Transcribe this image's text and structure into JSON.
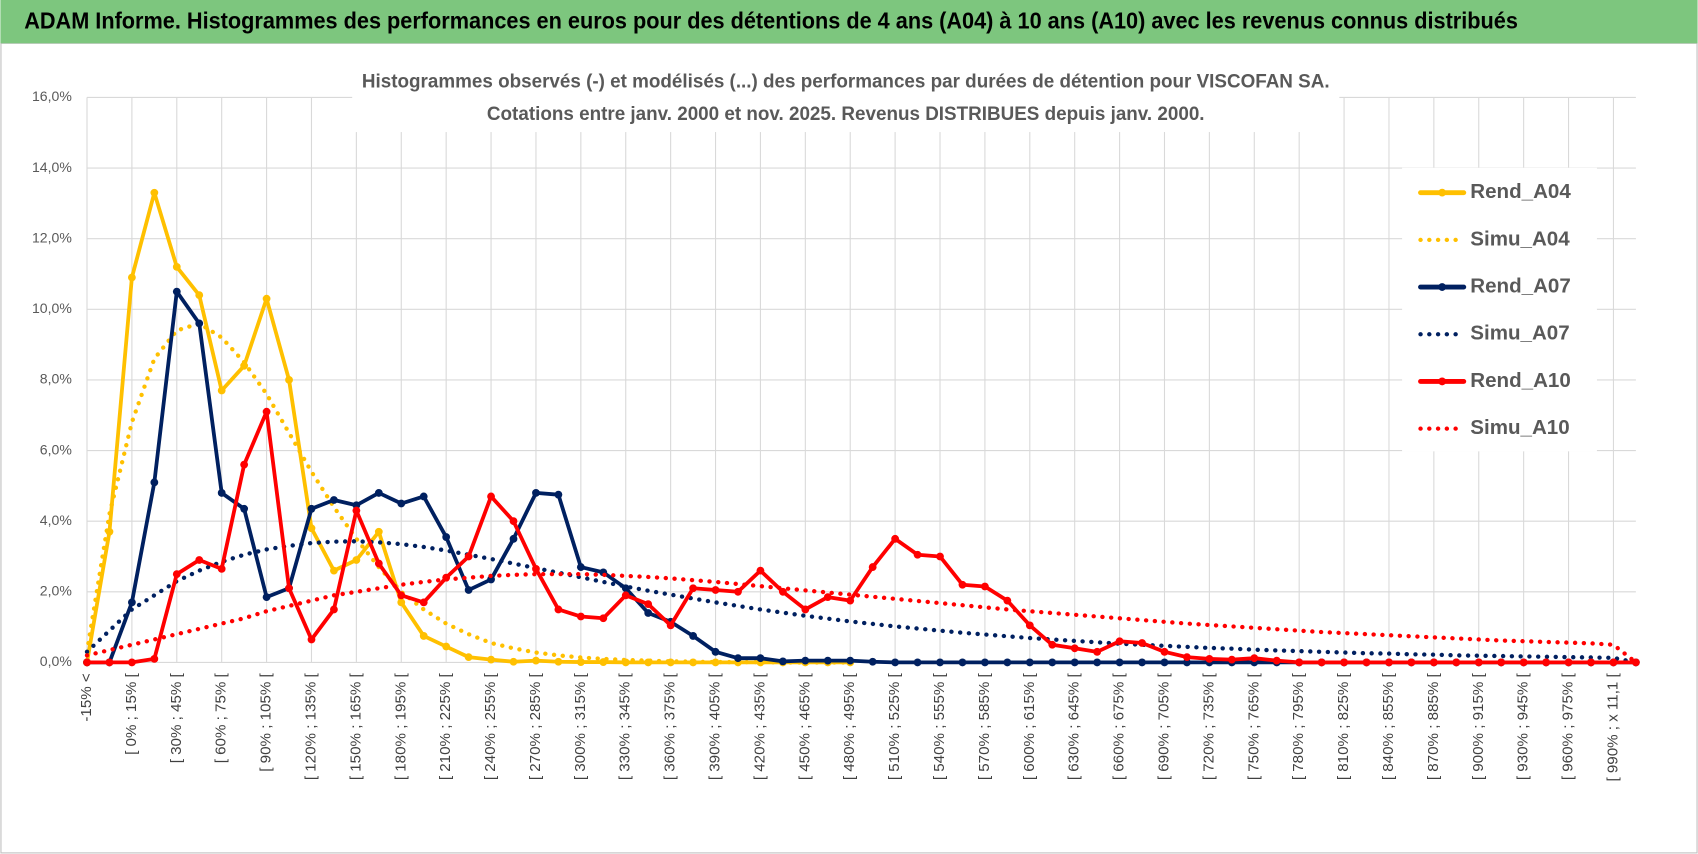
{
  "header": {
    "title": "ADAM Informe. Histogrammes des performances en euros pour des détentions de 4 ans (A04) à 10 ans (A10) avec les revenus connus distribués"
  },
  "chart_data": {
    "type": "line",
    "title": [
      "Histogrammes observés (-) et modélisés (...) des performances par durées de détention pour VISCOFAN SA.",
      "Cotations entre janv. 2000 et nov. 2025. Revenus DISTRIBUES depuis janv. 2000."
    ],
    "categories": [
      "-15% <",
      null,
      "[ 0% ; 15% [",
      null,
      "[ 30% ; 45% [",
      null,
      "[ 60% ; 75% [",
      null,
      "[ 90% ; 105% [",
      null,
      "[ 120% ; 135% [",
      null,
      "[ 150% ; 165% [",
      null,
      "[ 180% ; 195% [",
      null,
      "[ 210% ; 225% [",
      null,
      "[ 240% ; 255% [",
      null,
      "[ 270% ; 285% [",
      null,
      "[ 300% ; 315% [",
      null,
      "[ 330% ; 345% [",
      null,
      "[ 360% ; 375% [",
      null,
      "[ 390% ; 405% [",
      null,
      "[ 420% ; 435% [",
      null,
      "[ 450% ; 465% [",
      null,
      "[ 480% ; 495% [",
      null,
      "[ 510% ; 525% [",
      null,
      "[ 540% ; 555% [",
      null,
      "[ 570% ; 585% [",
      null,
      "[ 600% ; 615% [",
      null,
      "[ 630% ; 645% [",
      null,
      "[ 660% ; 675% [",
      null,
      "[ 690% ; 705% [",
      null,
      "[ 720% ; 735% [",
      null,
      "[ 750% ; 765% [",
      null,
      "[ 780% ; 795% [",
      null,
      "[ 810% ; 825% [",
      null,
      "[ 840% ; 855% [",
      null,
      "[ 870% ; 885% [",
      null,
      "[ 900% ; 915% [",
      null,
      "[ 930% ; 945% [",
      null,
      "[ 960% ; 975% [",
      null,
      "[ 990% ; x 11,1 [",
      null
    ],
    "series": [
      {
        "name": "Rend_A04",
        "color": "#ffc000",
        "line_style": "solid",
        "marker": true,
        "values": [
          0,
          3.7,
          10.9,
          13.3,
          11.2,
          10.4,
          7.7,
          8.4,
          10.3,
          8.0,
          3.8,
          2.6,
          2.9,
          3.7,
          1.7,
          0.75,
          0.45,
          0.15,
          0.08,
          0.02,
          0.05,
          0.02,
          0.01,
          0.01,
          0,
          0,
          0,
          0,
          0,
          0,
          0,
          0,
          0,
          0,
          0,
          null,
          null,
          null,
          null,
          null,
          null,
          null,
          null,
          null,
          null,
          null,
          null,
          null,
          null,
          null,
          null,
          null,
          null,
          null,
          null,
          null,
          null,
          null,
          null,
          null,
          null,
          null,
          null,
          null,
          null,
          null,
          null,
          null,
          null,
          null
        ]
      },
      {
        "name": "Simu_A04",
        "color": "#ffc000",
        "line_style": "dotted",
        "marker": false,
        "values": [
          0.3,
          4.2,
          6.8,
          8.6,
          9.4,
          9.6,
          9.2,
          8.5,
          7.6,
          6.5,
          5.4,
          4.4,
          3.5,
          2.7,
          2.0,
          1.5,
          1.1,
          0.8,
          0.55,
          0.4,
          0.28,
          0.2,
          0.14,
          0.1,
          0.07,
          0.05,
          0.03,
          0.02,
          0.01,
          0.01,
          0.01,
          0,
          0,
          0,
          0,
          null,
          null,
          null,
          null,
          null,
          null,
          null,
          null,
          null,
          null,
          null,
          null,
          null,
          null,
          null,
          null,
          null,
          null,
          null,
          null,
          null,
          null,
          null,
          null,
          null,
          null,
          null,
          null,
          null,
          null,
          null,
          null,
          null,
          null,
          null
        ]
      },
      {
        "name": "Rend_A07",
        "color": "#002060",
        "line_style": "solid",
        "marker": true,
        "values": [
          0,
          0,
          1.7,
          5.1,
          10.5,
          9.6,
          4.8,
          4.35,
          1.85,
          2.1,
          4.35,
          4.6,
          4.45,
          4.8,
          4.5,
          4.7,
          3.55,
          2.05,
          2.35,
          3.5,
          4.8,
          4.75,
          2.7,
          2.55,
          2.1,
          1.4,
          1.15,
          0.75,
          0.3,
          0.12,
          0.12,
          0.03,
          0.05,
          0.05,
          0.05,
          0.02,
          0,
          0,
          0,
          0,
          0,
          0,
          0,
          0,
          0,
          0,
          0,
          0,
          0,
          0,
          0,
          0,
          0,
          0,
          0,
          0,
          0,
          0,
          0,
          0,
          0,
          0,
          0,
          0,
          0,
          0,
          0,
          0,
          0,
          0
        ]
      },
      {
        "name": "Simu_A07",
        "color": "#002060",
        "line_style": "dotted",
        "marker": false,
        "values": [
          0.3,
          0.9,
          1.5,
          1.9,
          2.3,
          2.6,
          2.85,
          3.05,
          3.2,
          3.3,
          3.38,
          3.42,
          3.43,
          3.4,
          3.35,
          3.27,
          3.17,
          3.05,
          2.93,
          2.8,
          2.67,
          2.54,
          2.41,
          2.28,
          2.15,
          2.03,
          1.92,
          1.81,
          1.7,
          1.6,
          1.5,
          1.41,
          1.32,
          1.24,
          1.16,
          1.09,
          1.02,
          0.96,
          0.9,
          0.84,
          0.79,
          0.74,
          0.69,
          0.65,
          0.61,
          0.57,
          0.53,
          0.5,
          0.47,
          0.44,
          0.41,
          0.39,
          0.36,
          0.34,
          0.32,
          0.3,
          0.28,
          0.26,
          0.25,
          0.23,
          0.22,
          0.2,
          0.19,
          0.18,
          0.17,
          0.16,
          0.15,
          0.14,
          0.13,
          0
        ]
      },
      {
        "name": "Rend_A10",
        "color": "#ff0000",
        "line_style": "solid",
        "marker": true,
        "values": [
          0,
          0,
          0,
          0.1,
          2.5,
          2.9,
          2.65,
          5.6,
          7.1,
          2.1,
          0.65,
          1.5,
          4.3,
          2.8,
          1.9,
          1.7,
          2.4,
          3.0,
          4.7,
          4.0,
          2.65,
          1.5,
          1.3,
          1.25,
          1.9,
          1.65,
          1.05,
          2.1,
          2.05,
          2.0,
          2.6,
          2.0,
          1.5,
          1.85,
          1.75,
          2.7,
          3.5,
          3.05,
          3.0,
          2.2,
          2.15,
          1.75,
          1.05,
          0.5,
          0.4,
          0.3,
          0.6,
          0.55,
          0.3,
          0.15,
          0.1,
          0.08,
          0.12,
          0.05,
          0,
          0,
          0,
          0,
          0,
          0,
          0,
          0,
          0,
          0,
          0,
          0,
          0,
          0,
          0,
          0
        ]
      },
      {
        "name": "Simu_A10",
        "color": "#ff0000",
        "line_style": "dotted",
        "marker": false,
        "values": [
          0.2,
          0.35,
          0.5,
          0.65,
          0.8,
          0.95,
          1.1,
          1.25,
          1.45,
          1.6,
          1.75,
          1.9,
          2.0,
          2.1,
          2.2,
          2.28,
          2.35,
          2.4,
          2.45,
          2.48,
          2.5,
          2.5,
          2.5,
          2.48,
          2.45,
          2.42,
          2.38,
          2.33,
          2.28,
          2.22,
          2.16,
          2.1,
          2.04,
          1.98,
          1.92,
          1.86,
          1.8,
          1.74,
          1.68,
          1.62,
          1.56,
          1.5,
          1.45,
          1.4,
          1.35,
          1.3,
          1.25,
          1.2,
          1.15,
          1.1,
          1.06,
          1.02,
          0.98,
          0.94,
          0.9,
          0.86,
          0.83,
          0.8,
          0.77,
          0.74,
          0.71,
          0.68,
          0.65,
          0.62,
          0.6,
          0.58,
          0.56,
          0.54,
          0.5,
          0
        ]
      }
    ],
    "ylim": [
      0,
      16
    ],
    "yticks": [
      {
        "value": 0,
        "label": "0,0%"
      },
      {
        "value": 2,
        "label": "2,0%"
      },
      {
        "value": 4,
        "label": "4,0%"
      },
      {
        "value": 6,
        "label": "6,0%"
      },
      {
        "value": 8,
        "label": "8,0%"
      },
      {
        "value": 10,
        "label": "10,0%"
      },
      {
        "value": 12,
        "label": "12,0%"
      },
      {
        "value": 14,
        "label": "14,0%"
      },
      {
        "value": 16,
        "label": "16,0%"
      }
    ],
    "grid": true,
    "legend": "right"
  }
}
